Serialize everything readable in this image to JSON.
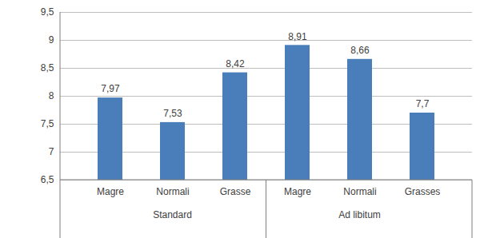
{
  "chart_data": {
    "type": "bar",
    "categories": [
      "Magre",
      "Normali",
      "Grasse",
      "Magre",
      "Normali",
      "Grasses"
    ],
    "group_labels": [
      "Standard",
      "Standard",
      "Standard",
      "Ad libitum",
      "Ad libitum",
      "Ad libitum"
    ],
    "values": [
      7.97,
      7.53,
      8.42,
      8.91,
      8.66,
      7.7
    ],
    "value_labels": [
      "7,97",
      "7,53",
      "8,42",
      "8,91",
      "8,66",
      "7,7"
    ],
    "color": "#4a7ebb",
    "ylim": [
      6.5,
      9.5
    ],
    "yticks": [
      {
        "value": 6.5,
        "label": "6,5"
      },
      7,
      {
        "value": 7.5,
        "label": "7,5"
      },
      8,
      {
        "value": 8.5,
        "label": "8,5"
      },
      9,
      {
        "value": 9.5,
        "label": "9,5"
      }
    ],
    "grid": true,
    "data_labels": true
  }
}
